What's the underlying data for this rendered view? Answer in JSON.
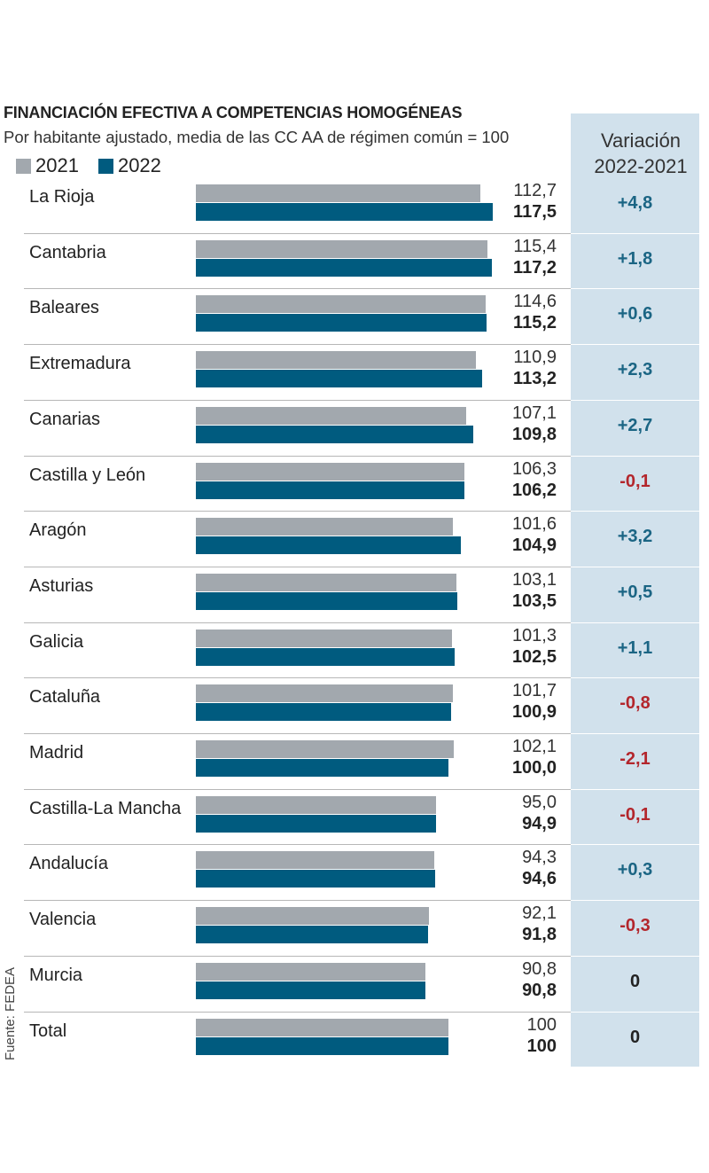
{
  "title": "FINANCIACIÓN EFECTIVA A COMPETENCIAS HOMOGÉNEAS",
  "subtitle": "Por habitante ajustado, media de las CC AA de régimen común = 100",
  "variation_header": {
    "line1": "Variación",
    "line2": "2022-2021"
  },
  "source": "Fuente: FEDEA",
  "colors": {
    "series_2021": "#a2a8ae",
    "series_2022": "#005b7f",
    "positive": "#1b6584",
    "negative": "#b3262c",
    "zero": "#222222",
    "panel": "#d1e1ec"
  },
  "chart_data": {
    "type": "bar",
    "orientation": "horizontal",
    "title": "FINANCIACIÓN EFECTIVA A COMPETENCIAS HOMOGÉNEAS",
    "subtitle": "Por habitante ajustado, media de las CC AA de régimen común = 100",
    "categories": [
      "La Rioja",
      "Cantabria",
      "Baleares",
      "Extremadura",
      "Canarias",
      "Castilla y León",
      "Aragón",
      "Asturias",
      "Galicia",
      "Cataluña",
      "Madrid",
      "Castilla-La Mancha",
      "Andalucía",
      "Valencia",
      "Murcia",
      "Total"
    ],
    "series": [
      {
        "name": "2021",
        "values": [
          112.7,
          115.4,
          114.6,
          110.9,
          107.1,
          106.3,
          101.6,
          103.1,
          101.3,
          101.7,
          102.1,
          95.0,
          94.3,
          92.1,
          90.8,
          100
        ],
        "labels": [
          "112,7",
          "115,4",
          "114,6",
          "110,9",
          "107,1",
          "106,3",
          "101,6",
          "103,1",
          "101,3",
          "101,7",
          "102,1",
          "95,0",
          "94,3",
          "92,1",
          "90,8",
          "100"
        ]
      },
      {
        "name": "2022",
        "values": [
          117.5,
          117.2,
          115.2,
          113.2,
          109.8,
          106.2,
          104.9,
          103.5,
          102.5,
          100.9,
          100.0,
          94.9,
          94.6,
          91.8,
          90.8,
          100
        ],
        "labels": [
          "117,5",
          "117,2",
          "115,2",
          "113,2",
          "109,8",
          "106,2",
          "104,9",
          "103,5",
          "102,5",
          "100,9",
          "100,0",
          "94,9",
          "94,6",
          "91,8",
          "90,8",
          "100"
        ]
      }
    ],
    "variation": [
      "+4,8",
      "+1,8",
      "+0,6",
      "+2,3",
      "+2,7",
      "-0,1",
      "+3,2",
      "+0,5",
      "+1,1",
      "-0,8",
      "-2,1",
      "-0,1",
      "+0,3",
      "-0,3",
      "0",
      "0"
    ],
    "xlim": [
      0,
      117.5
    ],
    "grid": false,
    "legend": "top-left"
  }
}
